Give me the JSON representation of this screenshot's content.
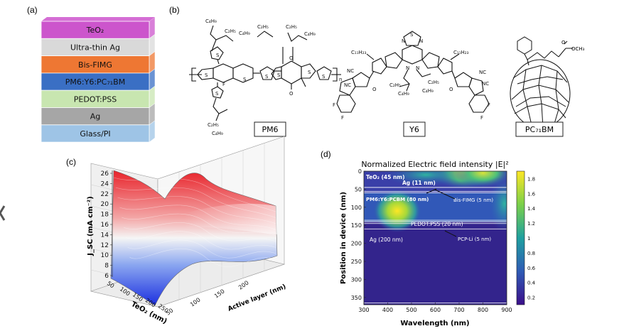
{
  "panels": {
    "a": "(a)",
    "b": "(b)",
    "c": "(c)",
    "d": "(d)"
  },
  "device_stack": {
    "layers": [
      {
        "label": "TeO₂",
        "color": "#cc55cc"
      },
      {
        "label": "Ultra-thin Ag",
        "color": "#d9d9d9"
      },
      {
        "label": "Bis-FIMG",
        "color": "#ee7733"
      },
      {
        "label": "PM6:Y6:PC₇₁BM",
        "color": "#3a6fc4"
      },
      {
        "label": "PEDOT:PSS",
        "color": "#c8e6b0"
      },
      {
        "label": "Ag",
        "color": "#a6a6a6"
      },
      {
        "label": "Glass/PI",
        "color": "#9ec4e6"
      }
    ]
  },
  "structures": {
    "pm6": "PM6",
    "y6": "Y6",
    "pcbm": "PC₇₁BM",
    "atoms": {
      "c4h9": "C₄H₉",
      "c2h5": "C₂H₅",
      "c11h23": "C₁₁H₂₃",
      "s": "S",
      "n": "N",
      "o": "O",
      "f": "F",
      "cn": "NC",
      "och3": "OCH₃",
      "n_sub": "n"
    }
  },
  "surface_plot": {
    "zlabel": "J_SC (mA cm⁻²)",
    "xlabel": "TeO₂ (nm)",
    "ylabel": "Active layer (nm)",
    "z_ticks": [
      "26",
      "24",
      "22",
      "20",
      "18",
      "16",
      "14",
      "12",
      "10",
      "8",
      "6"
    ],
    "x_ticks": [
      "50",
      "100",
      "150",
      "200",
      "250"
    ],
    "y_ticks": [
      "50",
      "100",
      "150",
      "200"
    ]
  },
  "field_plot": {
    "title": "Normalized Electric field intensity |E|²",
    "xlabel": "Wavelength (nm)",
    "ylabel": "Position in device (nm)",
    "x_ticks": [
      "300",
      "400",
      "500",
      "600",
      "700",
      "800",
      "900"
    ],
    "y_ticks": [
      "0",
      "50",
      "100",
      "150",
      "200",
      "250",
      "300",
      "350"
    ],
    "colorbar_ticks": [
      "1.8",
      "1.6",
      "1.4",
      "1.2",
      "1",
      "0.8",
      "0.6",
      "0.4",
      "0.2"
    ],
    "annotations": [
      {
        "text": "TeO₂ (45 nm)"
      },
      {
        "text": "Ag (11 nm)"
      },
      {
        "text": "PM6:Y6:PCBM (80 nm)"
      },
      {
        "text": "Bis-FIMG (5 nm)"
      },
      {
        "text": "PEDOT:PSS (20 nm)"
      },
      {
        "text": "PCP-Li (5 nm)"
      },
      {
        "text": "Ag (200 nm)"
      }
    ]
  },
  "chart_data": [
    {
      "type": "heatmap",
      "title": "Normalized Electric field intensity |E|²",
      "xlabel": "Wavelength (nm)",
      "ylabel": "Position in device (nm)",
      "xlim": [
        300,
        900
      ],
      "ylim": [
        0,
        370
      ],
      "colorbar_range": [
        0.1,
        1.9
      ],
      "hotspots": [
        {
          "wavelength": 440,
          "position": 110,
          "value": 1.8
        },
        {
          "wavelength": 720,
          "position": 5,
          "value": 1.6
        },
        {
          "wavelength": 800,
          "position": 5,
          "value": 1.7
        },
        {
          "wavelength": 890,
          "position": 90,
          "value": 1.3
        },
        {
          "wavelength": 560,
          "position": 10,
          "value": 0.9
        }
      ]
    },
    {
      "type": "surface",
      "zlabel": "J_SC (mA cm⁻²)",
      "xlabel": "TeO₂ (nm)",
      "ylabel": "Active layer (nm)",
      "zlim": [
        6,
        26
      ]
    }
  ]
}
